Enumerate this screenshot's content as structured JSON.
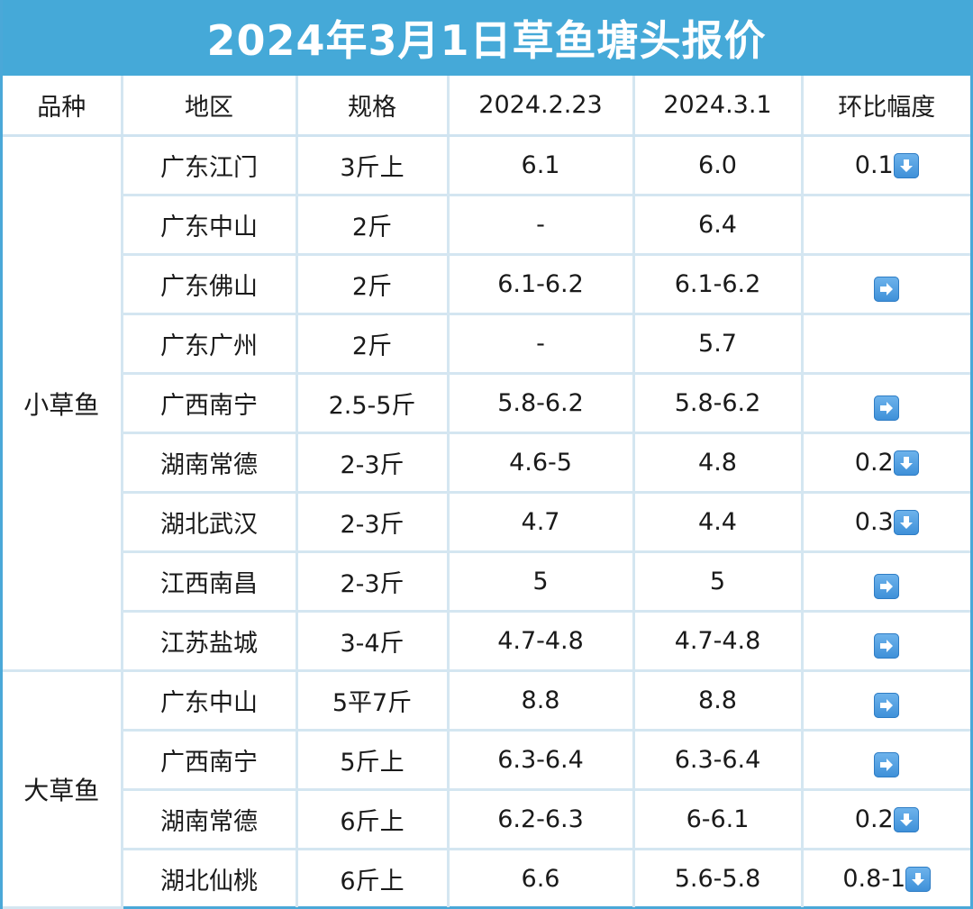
{
  "title": "2024年3月1日草鱼塘头报价",
  "colors": {
    "title_bar": "#45a9d8",
    "title_text": "#ffffff",
    "grid_lines": "#d4e6f1",
    "arrow_badge": "#4a9ae0"
  },
  "table": {
    "headers": [
      "品种",
      "地区",
      "规格",
      "2024.2.23",
      "2024.3.1",
      "环比幅度"
    ],
    "groups": [
      {
        "species": "小草鱼",
        "rows": [
          {
            "region": "广东江门",
            "spec": "3斤上",
            "price_prev": "6.1",
            "price_curr": "6.0",
            "change_value": "0.1",
            "trend": "down",
            "trend_icon": "down-arrow-icon"
          },
          {
            "region": "广东中山",
            "spec": "2斤",
            "price_prev": "-",
            "price_curr": "6.4",
            "change_value": "",
            "trend": "none",
            "trend_icon": ""
          },
          {
            "region": "广东佛山",
            "spec": "2斤",
            "price_prev": "6.1-6.2",
            "price_curr": "6.1-6.2",
            "change_value": "",
            "trend": "flat",
            "trend_icon": "right-arrow-icon"
          },
          {
            "region": "广东广州",
            "spec": "2斤",
            "price_prev": "-",
            "price_curr": "5.7",
            "change_value": "",
            "trend": "none",
            "trend_icon": ""
          },
          {
            "region": "广西南宁",
            "spec": "2.5-5斤",
            "price_prev": "5.8-6.2",
            "price_curr": "5.8-6.2",
            "change_value": "",
            "trend": "flat",
            "trend_icon": "right-arrow-icon"
          },
          {
            "region": "湖南常德",
            "spec": "2-3斤",
            "price_prev": "4.6-5",
            "price_curr": "4.8",
            "change_value": "0.2",
            "trend": "down",
            "trend_icon": "down-arrow-icon"
          },
          {
            "region": "湖北武汉",
            "spec": "2-3斤",
            "price_prev": "4.7",
            "price_curr": "4.4",
            "change_value": "0.3",
            "trend": "down",
            "trend_icon": "down-arrow-icon"
          },
          {
            "region": "江西南昌",
            "spec": "2-3斤",
            "price_prev": "5",
            "price_curr": "5",
            "change_value": "",
            "trend": "flat",
            "trend_icon": "right-arrow-icon"
          },
          {
            "region": "江苏盐城",
            "spec": "3-4斤",
            "price_prev": "4.7-4.8",
            "price_curr": "4.7-4.8",
            "change_value": "",
            "trend": "flat",
            "trend_icon": "right-arrow-icon"
          }
        ]
      },
      {
        "species": "大草鱼",
        "rows": [
          {
            "region": "广东中山",
            "spec": "5平7斤",
            "price_prev": "8.8",
            "price_curr": "8.8",
            "change_value": "",
            "trend": "flat",
            "trend_icon": "right-arrow-icon"
          },
          {
            "region": "广西南宁",
            "spec": "5斤上",
            "price_prev": "6.3-6.4",
            "price_curr": "6.3-6.4",
            "change_value": "",
            "trend": "flat",
            "trend_icon": "right-arrow-icon"
          },
          {
            "region": "湖南常德",
            "spec": "6斤上",
            "price_prev": "6.2-6.3",
            "price_curr": "6-6.1",
            "change_value": "0.2",
            "trend": "down",
            "trend_icon": "down-arrow-icon"
          },
          {
            "region": "湖北仙桃",
            "spec": "6斤上",
            "price_prev": "6.6",
            "price_curr": "5.6-5.8",
            "change_value": "0.8-1",
            "trend": "down",
            "trend_icon": "down-arrow-icon"
          }
        ]
      }
    ]
  }
}
